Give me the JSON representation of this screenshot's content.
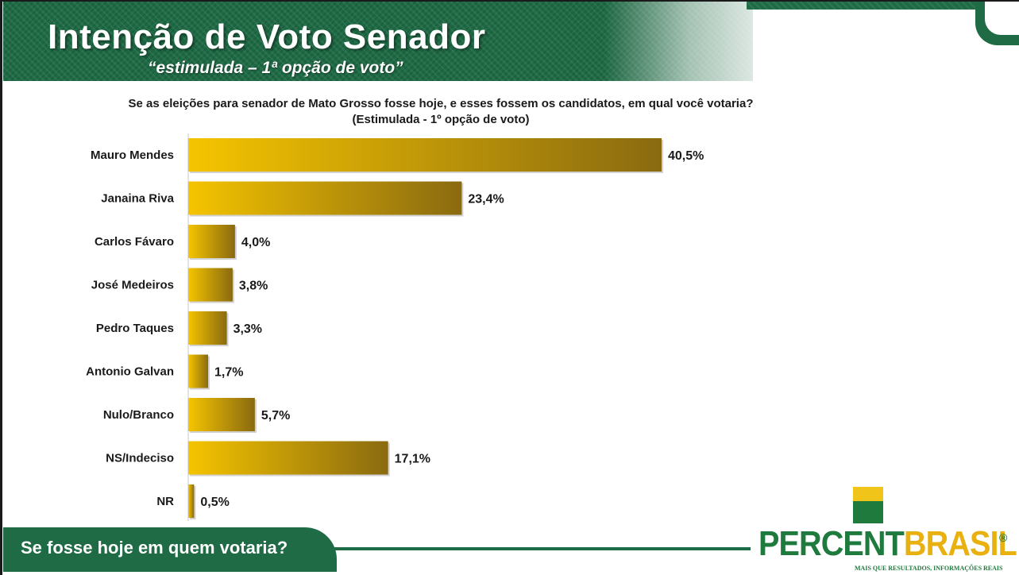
{
  "header": {
    "title": "Intenção de Voto Senador",
    "subtitle": "“estimulada – 1ª opção de voto”"
  },
  "chart_data": {
    "type": "bar",
    "orientation": "horizontal",
    "title": "Se as eleições para senador de Mato Grosso fosse hoje, e esses fossem os candidatos, em qual você votaria? (Estimulada - 1º opção de voto)",
    "categories": [
      "Mauro Mendes",
      "Janaina Riva",
      "Carlos Fávaro",
      "José Medeiros",
      "Pedro Taques",
      "Antonio Galvan",
      "Nulo/Branco",
      "NS/Indeciso",
      "NR"
    ],
    "values": [
      40.5,
      23.4,
      4.0,
      3.8,
      3.3,
      1.7,
      5.7,
      17.1,
      0.5
    ],
    "value_labels": [
      "40,5%",
      "23,4%",
      "4,0%",
      "3,8%",
      "3,3%",
      "1,7%",
      "5,7%",
      "17,1%",
      "0,5%"
    ],
    "xlim": [
      0,
      40.5
    ],
    "grid": false,
    "bar_color_start": "#f5c400",
    "bar_color_end": "#8a6a10"
  },
  "footer": {
    "text": "Se fosse hoje em quem votaria?"
  },
  "logo": {
    "part1": "PERCENT",
    "part2": "BRASIL",
    "registered": "®",
    "tagline": "MAIS QUE RESULTADOS, INFORMAÇÕES REAIS"
  },
  "colors": {
    "brand_green": "#1e6b45",
    "brand_yellow": "#f0c419"
  }
}
